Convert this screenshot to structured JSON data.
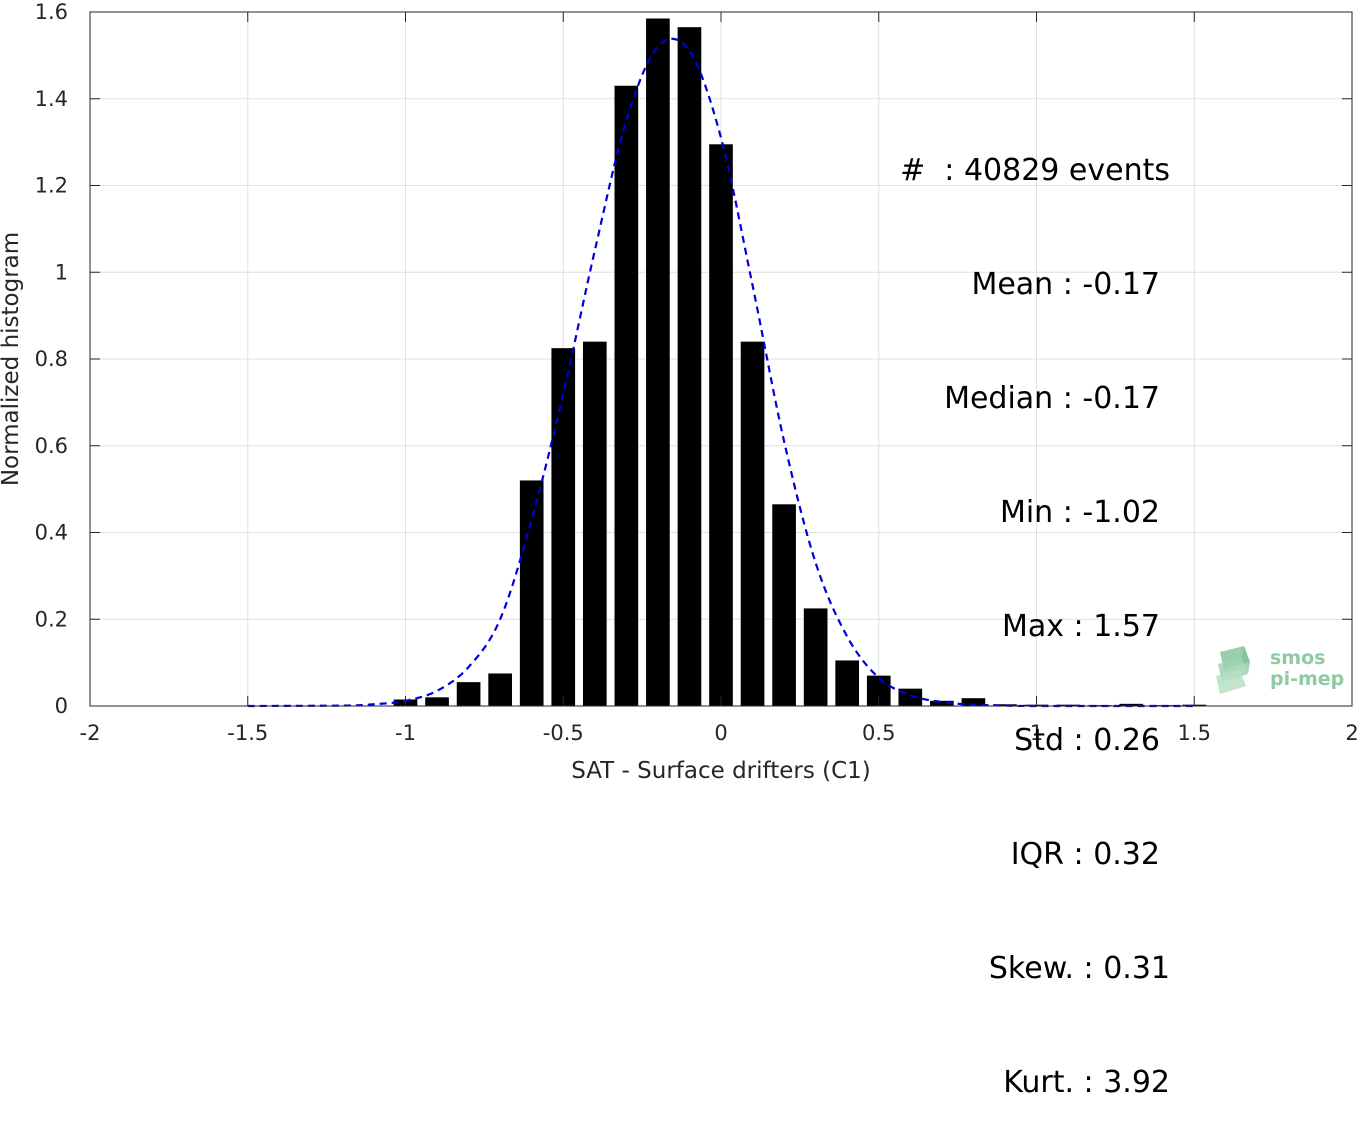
{
  "chart_data": {
    "type": "bar",
    "xlabel": "SAT - Surface drifters (C1)",
    "ylabel": "Normalized histogram",
    "xlim": [
      -2,
      2
    ],
    "ylim": [
      0,
      1.6
    ],
    "xticks": [
      "-2",
      "-1.5",
      "-1",
      "-0.5",
      "0",
      "0.5",
      "1",
      "1.5",
      "2"
    ],
    "yticks": [
      "0",
      "0.2",
      "0.4",
      "0.6",
      "0.8",
      "1",
      "1.2",
      "1.4",
      "1.6"
    ],
    "grid": true,
    "bar_color": "#000000",
    "bin_width": 0.1,
    "bins": [
      {
        "x": -1.0,
        "y": 0.015
      },
      {
        "x": -0.9,
        "y": 0.02
      },
      {
        "x": -0.8,
        "y": 0.055
      },
      {
        "x": -0.7,
        "y": 0.075
      },
      {
        "x": -0.6,
        "y": 0.52
      },
      {
        "x": -0.5,
        "y": 0.825
      },
      {
        "x": -0.4,
        "y": 0.84
      },
      {
        "x": -0.3,
        "y": 1.43
      },
      {
        "x": -0.2,
        "y": 1.585
      },
      {
        "x": -0.1,
        "y": 1.565
      },
      {
        "x": 0.0,
        "y": 1.295
      },
      {
        "x": 0.1,
        "y": 0.84
      },
      {
        "x": 0.2,
        "y": 0.465
      },
      {
        "x": 0.3,
        "y": 0.225
      },
      {
        "x": 0.4,
        "y": 0.105
      },
      {
        "x": 0.5,
        "y": 0.07
      },
      {
        "x": 0.6,
        "y": 0.04
      },
      {
        "x": 0.7,
        "y": 0.012
      },
      {
        "x": 0.8,
        "y": 0.018
      },
      {
        "x": 0.9,
        "y": 0.004
      },
      {
        "x": 1.0,
        "y": 0.003
      },
      {
        "x": 1.1,
        "y": 0.003
      },
      {
        "x": 1.2,
        "y": 0.002
      },
      {
        "x": 1.3,
        "y": 0.005
      },
      {
        "x": 1.4,
        "y": 0.002
      },
      {
        "x": 1.5,
        "y": 0.003
      }
    ],
    "fit_line": {
      "style": "dashed",
      "color": "#0000dd",
      "x": [
        -1.5,
        -1.2,
        -1.1,
        -1.0,
        -0.9,
        -0.8,
        -0.7,
        -0.6,
        -0.5,
        -0.4,
        -0.3,
        -0.2,
        -0.1,
        0.0,
        0.1,
        0.2,
        0.3,
        0.4,
        0.5,
        0.6,
        0.7,
        0.8,
        0.9,
        1.0,
        1.5
      ],
      "y": [
        0.0,
        0.001,
        0.004,
        0.012,
        0.035,
        0.09,
        0.2,
        0.43,
        0.72,
        1.05,
        1.35,
        1.52,
        1.51,
        1.31,
        0.97,
        0.61,
        0.33,
        0.16,
        0.065,
        0.025,
        0.009,
        0.003,
        0.001,
        0.0,
        0.0
      ]
    }
  },
  "stats": {
    "events": "#  : 40829 events",
    "mean": "Mean : -0.17",
    "median": "Median : -0.17",
    "min": "Min : -1.02",
    "max": "Max : 1.57",
    "std": "Std : 0.26",
    "iqr": "IQR : 0.32",
    "skew": "Skew. : 0.31",
    "kurt": "Kurt. : 3.92"
  },
  "logo": {
    "line1": "smos",
    "line2": "pi-mep",
    "color": "#8fcaa3"
  }
}
